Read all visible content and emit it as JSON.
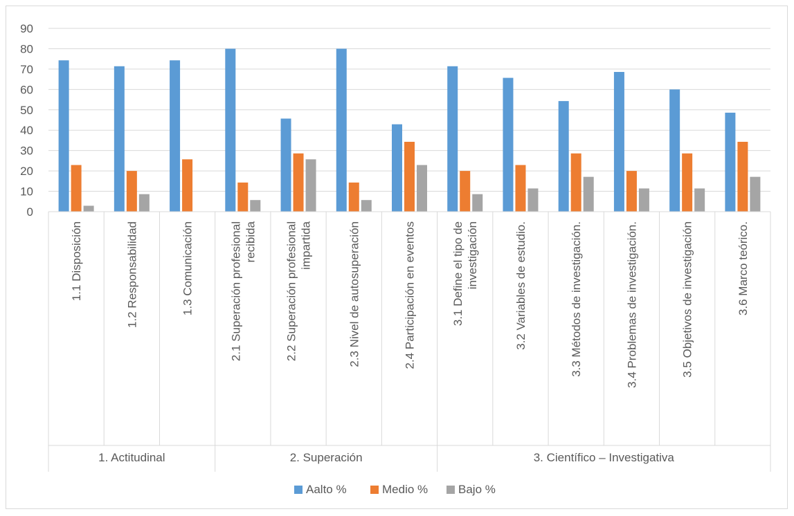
{
  "chart_data": {
    "type": "bar",
    "title": "",
    "xlabel": "",
    "ylabel": "",
    "ylim": [
      0,
      90
    ],
    "yticks": [
      0,
      10,
      20,
      30,
      40,
      50,
      60,
      70,
      80,
      90
    ],
    "grid": true,
    "legend_position": "bottom",
    "groups": [
      {
        "label": "1. Actitudinal",
        "size": 3
      },
      {
        "label": "2. Superación",
        "size": 4
      },
      {
        "label": "3. Científico – Investigativa",
        "size": 6
      }
    ],
    "categories": [
      [
        "1.1 Disposición"
      ],
      [
        "1.2 Responsabilidad"
      ],
      [
        "1.3 Comunicación"
      ],
      [
        "2.1 Superación profesional",
        "recibida"
      ],
      [
        "2.2 Superación profesional",
        "impartida"
      ],
      [
        "2.3 Nivel de autosuperación"
      ],
      [
        "2.4 Participación en eventos"
      ],
      [
        "3.1 Define el tipo de",
        "investigación"
      ],
      [
        "3.2 Variables de estudio."
      ],
      [
        "3.3 Métodos de investigación."
      ],
      [
        "3.4 Problemas de investigación."
      ],
      [
        "3.5 Objetivos de investigación"
      ],
      [
        "3.6 Marco teórico."
      ]
    ],
    "series": [
      {
        "name": "Aalto %",
        "color": "#5b9bd5",
        "values": [
          74.3,
          71.4,
          74.3,
          80,
          45.7,
          80,
          42.9,
          71.4,
          65.7,
          54.3,
          68.6,
          60,
          48.6
        ]
      },
      {
        "name": "Medio %",
        "color": "#ed7d31",
        "values": [
          22.9,
          20,
          25.7,
          14.3,
          28.6,
          14.3,
          34.3,
          20,
          22.9,
          28.6,
          20,
          28.6,
          34.3
        ]
      },
      {
        "name": "Bajo %",
        "color": "#a5a5a5",
        "values": [
          2.9,
          8.6,
          0,
          5.7,
          25.7,
          5.7,
          22.9,
          8.6,
          11.4,
          17.1,
          11.4,
          11.4,
          17.1
        ]
      }
    ]
  }
}
